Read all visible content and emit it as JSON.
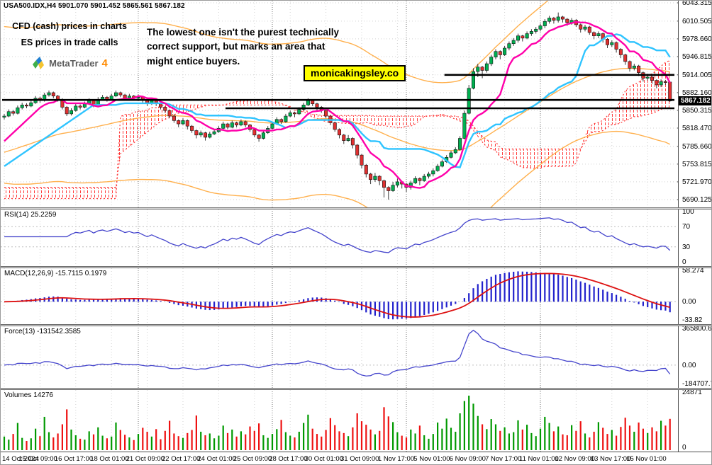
{
  "header": {
    "line": "USA500.IDX,H4  5901.070 5901.452 5865.561 5867.182"
  },
  "info_box": {
    "line1": "CFD (cash) prices in charts",
    "line2": "ES prices in trade calls",
    "logo_text": "MetaTrader",
    "logo_number": "4"
  },
  "annotation": {
    "text": "The lowest one isn't the purest technically\ncorrect support, but marks an area that\nmight entice buyers."
  },
  "watermark": {
    "text": "monicakingsley.co",
    "bg": "#ffff00"
  },
  "price_axis": {
    "labels": [
      "6043.315",
      "6010.505",
      "5978.660",
      "5946.815",
      "5914.005",
      "5882.160",
      "5850.315",
      "5818.470",
      "5785.660",
      "5753.815",
      "5721.970",
      "5690.125"
    ],
    "current": "5867.182"
  },
  "panels": {
    "rsi": {
      "label": "RSI(14) 25.2259",
      "axis": [
        "100",
        "70",
        "30",
        "0"
      ],
      "levels": [
        70,
        30
      ]
    },
    "macd": {
      "label": "MACD(12,26,9) -15.7115 0.1979",
      "axis": [
        "58.274",
        "0.00",
        "-33.82"
      ],
      "max": 58.274,
      "min": -33.82
    },
    "force": {
      "label": "Force(13) -131542.3585",
      "axis": [
        "365800.693",
        "0.00",
        "-184707.78"
      ],
      "max": 365800.693,
      "min": -184707.78
    },
    "volumes": {
      "label": "Volumes 14276",
      "axis": [
        "24871",
        "0"
      ],
      "max": 24871
    }
  },
  "colors": {
    "up": "#00b050",
    "down": "#e03030",
    "wick": "#3a3a3a",
    "body_stroke": "#111111",
    "tenkan": "#ff00aa",
    "kijun": "#2fc4ff",
    "envelope": "#ffb04d",
    "cloud": "#ff3b3b",
    "rsi": "#4444cc",
    "macd_hist": "#2222cc",
    "macd_signal": "#dd1111",
    "force": "#4444cc",
    "vol_up": "#009900",
    "vol_down": "#ee1111",
    "hline": "#000000",
    "grid": "#d2d2d2",
    "separator": "#7a7a7a"
  },
  "chart_data": [
    {
      "type": "candlestick",
      "symbol": "USA500.IDX",
      "period": "H4",
      "ohlc_display": {
        "open": "5901.070",
        "high": "5901.452",
        "low": "5865.561",
        "close": "5867.182"
      },
      "ylim": [
        5690.125,
        6043.315
      ],
      "current_price": 5867.182,
      "time_labels": [
        "14 Oct 2024",
        "15 Oct 09:00",
        "16 Oct 17:00",
        "18 Oct 01:00",
        "21 Oct 09:00",
        "22 Oct 17:00",
        "24 Oct 01:00",
        "25 Oct 09:00",
        "28 Oct 17:00",
        "30 Oct 01:00",
        "31 Oct 09:00",
        "1 Nov 17:00",
        "5 Nov 01:00",
        "6 Nov 09:00",
        "7 Nov 17:00",
        "11 Nov 01:00",
        "12 Nov 09:00",
        "13 Nov 17:00",
        "15 Nov 01:00"
      ],
      "bars_per_label": 8,
      "period_separator_bars": [
        30,
        60,
        90,
        120
      ],
      "hlines": [
        {
          "price": 5914.005,
          "from_bar": 99
        },
        {
          "price": 5869.0,
          "from_bar": 0
        },
        {
          "price": 5854.0,
          "from_bar": 50
        }
      ],
      "overlays": {
        "tenkan_period": 9,
        "kijun_period": 26,
        "senkou_b_period": 52,
        "cloud_shift": 26,
        "envelope_period": 34,
        "envelope_percent": 2.4,
        "ma_period": 55,
        "tenkan_start": 5795,
        "kijun_start": 5750,
        "ma_seed": 5775,
        "cloud_pre": [
          5712,
          5692
        ]
      },
      "candles": [
        [
          5838,
          5844,
          5834,
          5840
        ],
        [
          5840,
          5852,
          5838,
          5848
        ],
        [
          5848,
          5851,
          5841,
          5845
        ],
        [
          5845,
          5859,
          5843,
          5855
        ],
        [
          5855,
          5864,
          5852,
          5860
        ],
        [
          5860,
          5863,
          5854,
          5858
        ],
        [
          5858,
          5868,
          5856,
          5864
        ],
        [
          5864,
          5876,
          5862,
          5872
        ],
        [
          5872,
          5875,
          5864,
          5868
        ],
        [
          5868,
          5882,
          5866,
          5878
        ],
        [
          5878,
          5886,
          5875,
          5882
        ],
        [
          5882,
          5884,
          5872,
          5876
        ],
        [
          5876,
          5878,
          5866,
          5870
        ],
        [
          5870,
          5872,
          5852,
          5856
        ],
        [
          5856,
          5858,
          5840,
          5844
        ],
        [
          5844,
          5854,
          5841,
          5850
        ],
        [
          5850,
          5862,
          5848,
          5858
        ],
        [
          5858,
          5861,
          5852,
          5856
        ],
        [
          5856,
          5866,
          5854,
          5862
        ],
        [
          5862,
          5872,
          5860,
          5868
        ],
        [
          5868,
          5870,
          5856,
          5860
        ],
        [
          5860,
          5874,
          5858,
          5870
        ],
        [
          5870,
          5878,
          5868,
          5874
        ],
        [
          5874,
          5876,
          5866,
          5870
        ],
        [
          5870,
          5880,
          5868,
          5876
        ],
        [
          5876,
          5886,
          5874,
          5882
        ],
        [
          5882,
          5884,
          5874,
          5878
        ],
        [
          5878,
          5880,
          5868,
          5872
        ],
        [
          5872,
          5880,
          5870,
          5876
        ],
        [
          5876,
          5878,
          5868,
          5872
        ],
        [
          5872,
          5878,
          5870,
          5874
        ],
        [
          5874,
          5876,
          5864,
          5868
        ],
        [
          5868,
          5870,
          5858,
          5862
        ],
        [
          5862,
          5872,
          5860,
          5868
        ],
        [
          5868,
          5870,
          5858,
          5862
        ],
        [
          5862,
          5864,
          5852,
          5856
        ],
        [
          5856,
          5858,
          5846,
          5850
        ],
        [
          5850,
          5852,
          5836,
          5840
        ],
        [
          5840,
          5843,
          5828,
          5832
        ],
        [
          5832,
          5834,
          5820,
          5826
        ],
        [
          5826,
          5836,
          5824,
          5832
        ],
        [
          5832,
          5834,
          5816,
          5822
        ],
        [
          5822,
          5824,
          5810,
          5814
        ],
        [
          5814,
          5816,
          5800,
          5806
        ],
        [
          5806,
          5814,
          5802,
          5810
        ],
        [
          5810,
          5812,
          5796,
          5802
        ],
        [
          5802,
          5812,
          5800,
          5808
        ],
        [
          5808,
          5816,
          5806,
          5812
        ],
        [
          5812,
          5822,
          5810,
          5818
        ],
        [
          5818,
          5830,
          5816,
          5826
        ],
        [
          5826,
          5828,
          5816,
          5820
        ],
        [
          5820,
          5832,
          5818,
          5828
        ],
        [
          5828,
          5830,
          5820,
          5824
        ],
        [
          5824,
          5834,
          5822,
          5830
        ],
        [
          5830,
          5832,
          5820,
          5824
        ],
        [
          5824,
          5826,
          5812,
          5816
        ],
        [
          5816,
          5818,
          5802,
          5806
        ],
        [
          5806,
          5808,
          5794,
          5800
        ],
        [
          5800,
          5814,
          5798,
          5810
        ],
        [
          5810,
          5822,
          5808,
          5818
        ],
        [
          5818,
          5830,
          5816,
          5826
        ],
        [
          5826,
          5838,
          5824,
          5834
        ],
        [
          5834,
          5836,
          5826,
          5830
        ],
        [
          5830,
          5844,
          5828,
          5840
        ],
        [
          5840,
          5850,
          5838,
          5846
        ],
        [
          5846,
          5848,
          5838,
          5844
        ],
        [
          5844,
          5856,
          5842,
          5852
        ],
        [
          5852,
          5864,
          5850,
          5860
        ],
        [
          5860,
          5872,
          5858,
          5868
        ],
        [
          5868,
          5870,
          5858,
          5862
        ],
        [
          5862,
          5864,
          5850,
          5856
        ],
        [
          5856,
          5858,
          5846,
          5850
        ],
        [
          5850,
          5852,
          5836,
          5840
        ],
        [
          5840,
          5842,
          5824,
          5828
        ],
        [
          5828,
          5830,
          5812,
          5816
        ],
        [
          5816,
          5818,
          5800,
          5806
        ],
        [
          5806,
          5808,
          5790,
          5796
        ],
        [
          5796,
          5806,
          5794,
          5800
        ],
        [
          5800,
          5802,
          5782,
          5788
        ],
        [
          5788,
          5790,
          5764,
          5770
        ],
        [
          5770,
          5772,
          5746,
          5752
        ],
        [
          5752,
          5754,
          5730,
          5736
        ],
        [
          5736,
          5738,
          5718,
          5726
        ],
        [
          5726,
          5738,
          5722,
          5732
        ],
        [
          5732,
          5734,
          5716,
          5724
        ],
        [
          5724,
          5726,
          5694,
          5712
        ],
        [
          5712,
          5714,
          5690,
          5706
        ],
        [
          5706,
          5722,
          5704,
          5716
        ],
        [
          5716,
          5728,
          5712,
          5722
        ],
        [
          5722,
          5724,
          5710,
          5718
        ],
        [
          5718,
          5720,
          5704,
          5712
        ],
        [
          5712,
          5724,
          5708,
          5720
        ],
        [
          5720,
          5732,
          5718,
          5728
        ],
        [
          5728,
          5730,
          5716,
          5724
        ],
        [
          5724,
          5736,
          5722,
          5732
        ],
        [
          5732,
          5740,
          5728,
          5736
        ],
        [
          5736,
          5746,
          5732,
          5742
        ],
        [
          5742,
          5754,
          5740,
          5750
        ],
        [
          5750,
          5762,
          5748,
          5758
        ],
        [
          5758,
          5770,
          5756,
          5766
        ],
        [
          5766,
          5778,
          5764,
          5774
        ],
        [
          5774,
          5784,
          5772,
          5780
        ],
        [
          5780,
          5804,
          5778,
          5800
        ],
        [
          5800,
          5850,
          5798,
          5845
        ],
        [
          5845,
          5896,
          5843,
          5890
        ],
        [
          5890,
          5926,
          5888,
          5920
        ],
        [
          5920,
          5934,
          5910,
          5928
        ],
        [
          5928,
          5930,
          5908,
          5922
        ],
        [
          5922,
          5938,
          5918,
          5934
        ],
        [
          5934,
          5950,
          5930,
          5946
        ],
        [
          5946,
          5960,
          5942,
          5956
        ],
        [
          5956,
          5958,
          5942,
          5950
        ],
        [
          5950,
          5966,
          5948,
          5962
        ],
        [
          5962,
          5974,
          5958,
          5970
        ],
        [
          5970,
          5980,
          5966,
          5976
        ],
        [
          5976,
          5988,
          5972,
          5984
        ],
        [
          5984,
          5986,
          5974,
          5980
        ],
        [
          5980,
          5992,
          5978,
          5988
        ],
        [
          5988,
          5996,
          5984,
          5992
        ],
        [
          5992,
          6000,
          5988,
          5996
        ],
        [
          5996,
          6006,
          5992,
          6002
        ],
        [
          6002,
          6014,
          5998,
          6010
        ],
        [
          6010,
          6020,
          6006,
          6016
        ],
        [
          6016,
          6018,
          6006,
          6012
        ],
        [
          6012,
          6026,
          6008,
          6018
        ],
        [
          6018,
          6020,
          6008,
          6014
        ],
        [
          6014,
          6016,
          6002,
          6008
        ],
        [
          6008,
          6016,
          6004,
          6012
        ],
        [
          6012,
          6014,
          6000,
          6004
        ],
        [
          6004,
          6006,
          5990,
          5996
        ],
        [
          5996,
          6004,
          5992,
          6000
        ],
        [
          6000,
          6002,
          5986,
          5990
        ],
        [
          5990,
          5992,
          5978,
          5984
        ],
        [
          5984,
          5992,
          5980,
          5988
        ],
        [
          5988,
          5990,
          5972,
          5978
        ],
        [
          5978,
          5980,
          5962,
          5968
        ],
        [
          5968,
          5976,
          5964,
          5972
        ],
        [
          5972,
          5974,
          5954,
          5960
        ],
        [
          5960,
          5962,
          5944,
          5950
        ],
        [
          5950,
          5952,
          5932,
          5938
        ],
        [
          5938,
          5940,
          5920,
          5926
        ],
        [
          5926,
          5934,
          5922,
          5930
        ],
        [
          5930,
          5932,
          5912,
          5918
        ],
        [
          5918,
          5920,
          5902,
          5908
        ],
        [
          5908,
          5916,
          5904,
          5910
        ],
        [
          5910,
          5912,
          5898,
          5904
        ],
        [
          5904,
          5906,
          5890,
          5896
        ],
        [
          5896,
          5906,
          5892,
          5902
        ],
        [
          5902,
          5905,
          5896,
          5901
        ],
        [
          5901.1,
          5901.5,
          5865.6,
          5867.2
        ]
      ]
    },
    {
      "type": "line",
      "panel": "rsi",
      "indicator": "RSI",
      "period": 14,
      "last_value": 25.2259,
      "ylim": [
        0,
        100
      ]
    },
    {
      "type": "macd",
      "panel": "macd",
      "indicator": "MACD",
      "periods": [
        12,
        26,
        9
      ],
      "last_values": [
        -15.7115,
        0.1979
      ],
      "ylim": [
        -33.82,
        58.274
      ]
    },
    {
      "type": "line",
      "panel": "force",
      "indicator": "Force",
      "period": 13,
      "last_value": -131542.3585,
      "ylim": [
        -184707.78,
        365800.693
      ]
    },
    {
      "type": "bar",
      "panel": "volumes",
      "indicator": "Volumes",
      "last_value": 14276,
      "ylim": [
        0,
        24871
      ],
      "values": [
        6200,
        4800,
        7400,
        12400,
        5600,
        4200,
        5400,
        9800,
        6400,
        15200,
        8200,
        5800,
        7600,
        11800,
        18600,
        9400,
        6800,
        5200,
        4800,
        8600,
        7200,
        10400,
        6600,
        5400,
        6200,
        12600,
        9200,
        7000,
        5800,
        4600,
        7400,
        10200,
        8400,
        6200,
        9600,
        5000,
        8800,
        13400,
        7600,
        6400,
        5600,
        7800,
        9200,
        15800,
        8400,
        6800,
        7600,
        5400,
        6600,
        11200,
        7800,
        9400,
        6200,
        8600,
        7200,
        10800,
        8800,
        12200,
        6800,
        5600,
        7400,
        9600,
        13800,
        8200,
        6600,
        5800,
        8400,
        12400,
        16200,
        9800,
        7400,
        6200,
        9200,
        14600,
        11400,
        8600,
        7800,
        6400,
        10400,
        16800,
        13200,
        11600,
        9400,
        7200,
        8800,
        19600,
        15400,
        12800,
        8200,
        6600,
        5800,
        9400,
        7600,
        11200,
        6800,
        5200,
        7400,
        12600,
        9800,
        14400,
        10200,
        8400,
        16800,
        22400,
        24871,
        21200,
        15600,
        11800,
        9600,
        14200,
        11800,
        8800,
        10400,
        7600,
        8200,
        13600,
        9400,
        11600,
        7800,
        6400,
        9800,
        15200,
        12400,
        8600,
        10800,
        7200,
        6800,
        11400,
        8800,
        13200,
        7600,
        5800,
        8400,
        12800,
        10200,
        7400,
        9200,
        6600,
        10600,
        14800,
        11200,
        8400,
        12600,
        9800,
        7800,
        10400,
        8600,
        13400,
        11200,
        14276
      ]
    }
  ]
}
